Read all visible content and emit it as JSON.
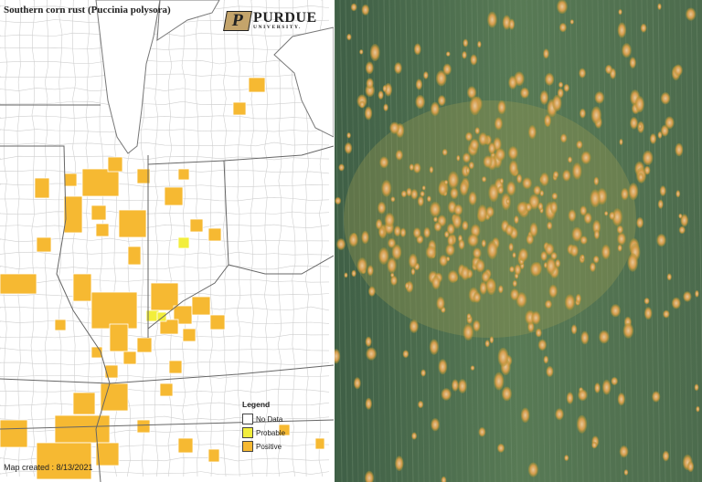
{
  "map": {
    "title": "Southern corn rust (Puccinia polysora)",
    "logo": {
      "main": "PURDUE",
      "sub": "UNIVERSITY.",
      "letter": "P"
    },
    "legend": {
      "title": "Legend",
      "items": [
        {
          "label": "No Data",
          "color": "#ffffff"
        },
        {
          "label": "Probable",
          "color": "#f2ee3c"
        },
        {
          "label": "Positive",
          "color": "#f6b932"
        }
      ]
    },
    "created": "Map created : 8/13/2021"
  },
  "photo": {
    "leaf_color": "#4d6e4c",
    "lesion_color": "#d39b4a"
  }
}
